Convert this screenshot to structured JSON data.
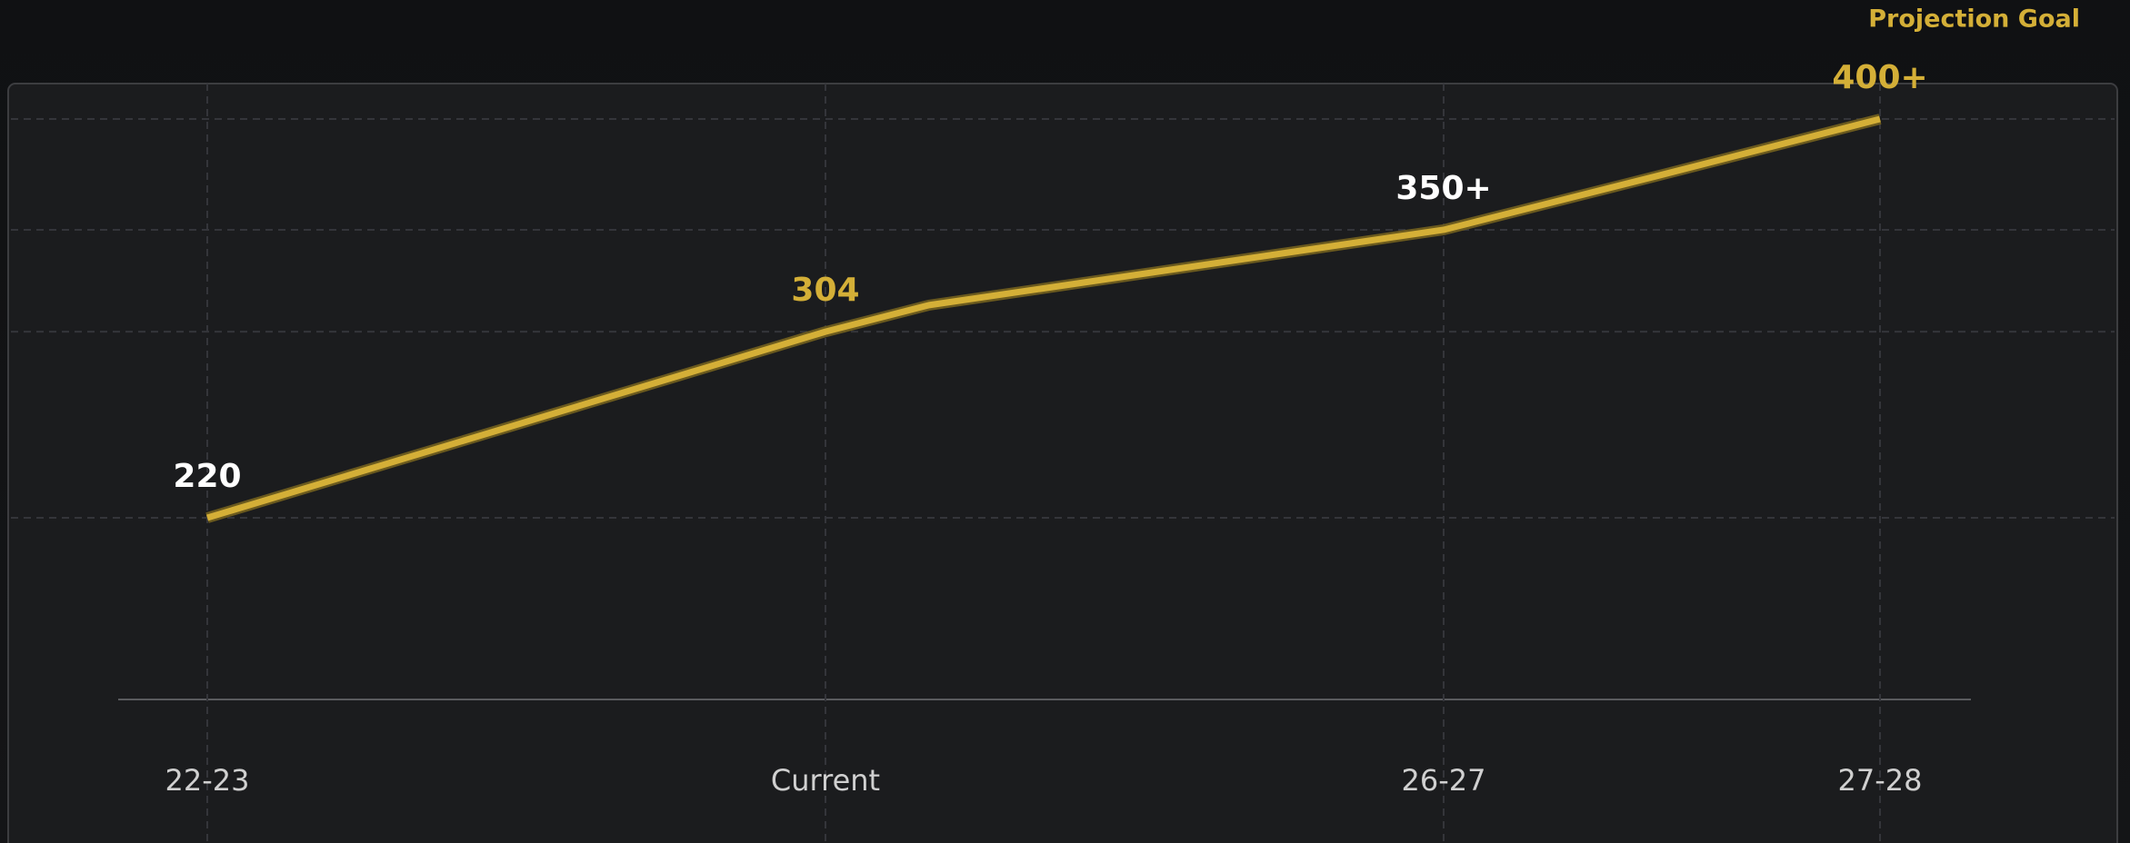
{
  "chart_data": {
    "type": "line",
    "categories": [
      "22-23",
      "Current",
      null,
      "26-27",
      null,
      "27-28"
    ],
    "series": [
      {
        "name": "Projection Goal",
        "color": "#d4af37",
        "values": [
          220,
          304,
          316,
          350,
          374,
          400
        ],
        "value_labels": [
          "220",
          "304",
          null,
          "350+",
          null,
          "400+"
        ],
        "label_colors": [
          "#ffffff",
          "#d4af37",
          null,
          "#ffffff",
          null,
          "#d4af37"
        ]
      }
    ],
    "ylim": [
      138,
      416
    ],
    "grid": true
  }
}
